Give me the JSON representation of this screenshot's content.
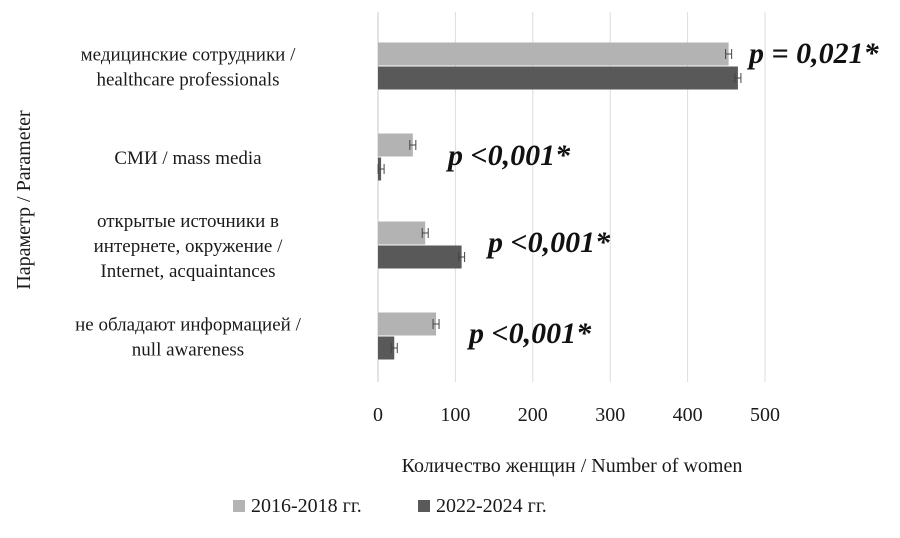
{
  "chart_data": {
    "type": "bar",
    "orientation": "horizontal",
    "xlabel": "Количество женщин / Number of women",
    "ylabel": "Параметр / Parameter",
    "xlim": [
      0,
      500
    ],
    "xticks": [
      "0",
      "100",
      "200",
      "300",
      "400",
      "500"
    ],
    "grid": true,
    "legend_position": "bottom",
    "categories": [
      [
        "медицинские сотрудники /",
        "healthcare professionals"
      ],
      [
        "СМИ / mass media"
      ],
      [
        "открытые источники в",
        "интернете, окружение /",
        "Internet, acquaintances"
      ],
      [
        "не обладают информацией /",
        "null awareness"
      ]
    ],
    "series": [
      {
        "name": "2016-2018 гг.",
        "color": "#b3b3b3",
        "values": [
          453,
          45,
          61,
          75
        ]
      },
      {
        "name": "2022-2024 гг.",
        "color": "#595959",
        "values": [
          465,
          4,
          108,
          21
        ]
      }
    ],
    "error_bars": true,
    "annotations": [
      "p = 0,021*",
      "p <0,001*",
      "p <0,001*",
      "p <0,001*"
    ]
  }
}
